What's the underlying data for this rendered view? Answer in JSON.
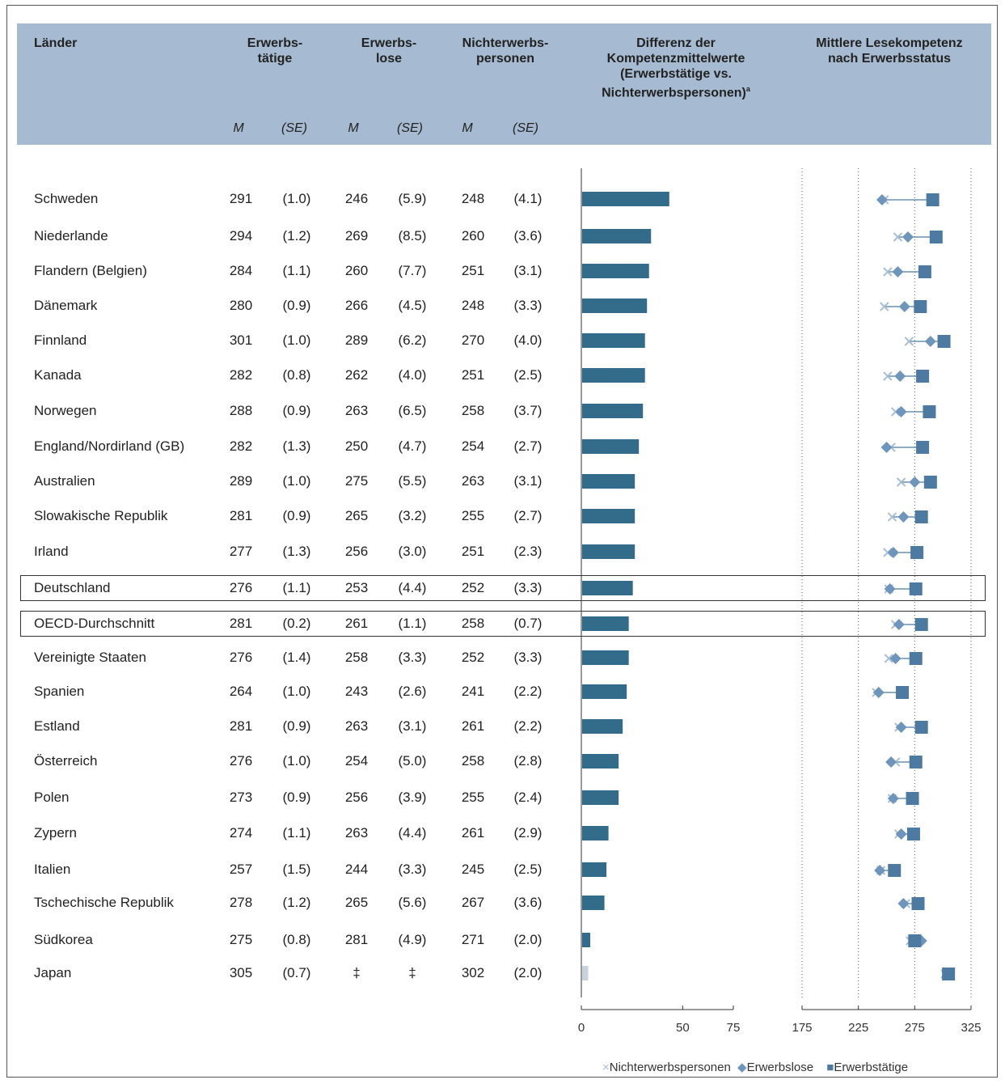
{
  "header": {
    "laender": "Länder",
    "erwerbstaetige": [
      "Erwerbs-",
      "tätige"
    ],
    "erwerbslose": [
      "Erwerbs-",
      "lose"
    ],
    "nichterwerbspersonen": [
      "Nichterwerbs-",
      "personen"
    ],
    "differenz": [
      "Differenz der",
      "Kompetenzmittelwerte",
      "(Erwerbstätige vs.",
      "Nichterwerbspersonen)"
    ],
    "differenz_sup": "a",
    "mittlere": [
      "Mittlere Lesekompetenz",
      "nach Erwerbsstatus"
    ],
    "m_label": "M",
    "se_label": "(SE)"
  },
  "chart_data": {
    "type": "table",
    "columns": [
      "Länder",
      "Erwerbstätige M",
      "Erwerbstätige SE",
      "Erwerbslose M",
      "Erwerbslose SE",
      "Nichterwerbspersonen M",
      "Nichterwerbspersonen SE"
    ],
    "rows": [
      {
        "country": "Schweden",
        "emp": "291",
        "emp_se": "(1.0)",
        "unemp": "246",
        "unemp_se": "(5.9)",
        "inact": "248",
        "inact_se": "(4.1)",
        "diff": 43,
        "highlight": false
      },
      {
        "country": "Niederlande",
        "emp": "294",
        "emp_se": "(1.2)",
        "unemp": "269",
        "unemp_se": "(8.5)",
        "inact": "260",
        "inact_se": "(3.6)",
        "diff": 34,
        "highlight": false
      },
      {
        "country": "Flandern (Belgien)",
        "emp": "284",
        "emp_se": "(1.1)",
        "unemp": "260",
        "unemp_se": "(7.7)",
        "inact": "251",
        "inact_se": "(3.1)",
        "diff": 33,
        "highlight": false
      },
      {
        "country": "Dänemark",
        "emp": "280",
        "emp_se": "(0.9)",
        "unemp": "266",
        "unemp_se": "(4.5)",
        "inact": "248",
        "inact_se": "(3.3)",
        "diff": 32,
        "highlight": false
      },
      {
        "country": "Finnland",
        "emp": "301",
        "emp_se": "(1.0)",
        "unemp": "289",
        "unemp_se": "(6.2)",
        "inact": "270",
        "inact_se": "(4.0)",
        "diff": 31,
        "highlight": false
      },
      {
        "country": "Kanada",
        "emp": "282",
        "emp_se": "(0.8)",
        "unemp": "262",
        "unemp_se": "(4.0)",
        "inact": "251",
        "inact_se": "(2.5)",
        "diff": 31,
        "highlight": false
      },
      {
        "country": "Norwegen",
        "emp": "288",
        "emp_se": "(0.9)",
        "unemp": "263",
        "unemp_se": "(6.5)",
        "inact": "258",
        "inact_se": "(3.7)",
        "diff": 30,
        "highlight": false
      },
      {
        "country": "England/Nordirland (GB)",
        "emp": "282",
        "emp_se": "(1.3)",
        "unemp": "250",
        "unemp_se": "(4.7)",
        "inact": "254",
        "inact_se": "(2.7)",
        "diff": 28,
        "highlight": false
      },
      {
        "country": "Australien",
        "emp": "289",
        "emp_se": "(1.0)",
        "unemp": "275",
        "unemp_se": "(5.5)",
        "inact": "263",
        "inact_se": "(3.1)",
        "diff": 26,
        "highlight": false
      },
      {
        "country": "Slowakische Republik",
        "emp": "281",
        "emp_se": "(0.9)",
        "unemp": "265",
        "unemp_se": "(3.2)",
        "inact": "255",
        "inact_se": "(2.7)",
        "diff": 26,
        "highlight": false
      },
      {
        "country": "Irland",
        "emp": "277",
        "emp_se": "(1.3)",
        "unemp": "256",
        "unemp_se": "(3.0)",
        "inact": "251",
        "inact_se": "(2.3)",
        "diff": 26,
        "highlight": false
      },
      {
        "country": "Deutschland",
        "emp": "276",
        "emp_se": "(1.1)",
        "unemp": "253",
        "unemp_se": "(4.4)",
        "inact": "252",
        "inact_se": "(3.3)",
        "diff": 25,
        "highlight": true
      },
      {
        "country": "OECD-Durchschnitt",
        "emp": "281",
        "emp_se": "(0.2)",
        "unemp": "261",
        "unemp_se": "(1.1)",
        "inact": "258",
        "inact_se": "(0.7)",
        "diff": 23,
        "highlight": true
      },
      {
        "country": "Vereinigte Staaten",
        "emp": "276",
        "emp_se": "(1.4)",
        "unemp": "258",
        "unemp_se": "(3.3)",
        "inact": "252",
        "inact_se": "(3.3)",
        "diff": 23,
        "highlight": false
      },
      {
        "country": "Spanien",
        "emp": "264",
        "emp_se": "(1.0)",
        "unemp": "243",
        "unemp_se": "(2.6)",
        "inact": "241",
        "inact_se": "(2.2)",
        "diff": 22,
        "highlight": false
      },
      {
        "country": "Estland",
        "emp": "281",
        "emp_se": "(0.9)",
        "unemp": "263",
        "unemp_se": "(3.1)",
        "inact": "261",
        "inact_se": "(2.2)",
        "diff": 20,
        "highlight": false
      },
      {
        "country": "Österreich",
        "emp": "276",
        "emp_se": "(1.0)",
        "unemp": "254",
        "unemp_se": "(5.0)",
        "inact": "258",
        "inact_se": "(2.8)",
        "diff": 18,
        "highlight": false
      },
      {
        "country": "Polen",
        "emp": "273",
        "emp_se": "(0.9)",
        "unemp": "256",
        "unemp_se": "(3.9)",
        "inact": "255",
        "inact_se": "(2.4)",
        "diff": 18,
        "highlight": false
      },
      {
        "country": "Zypern",
        "emp": "274",
        "emp_se": "(1.1)",
        "unemp": "263",
        "unemp_se": "(4.4)",
        "inact": "261",
        "inact_se": "(2.9)",
        "diff": 13,
        "highlight": false
      },
      {
        "country": "Italien",
        "emp": "257",
        "emp_se": "(1.5)",
        "unemp": "244",
        "unemp_se": "(3.3)",
        "inact": "245",
        "inact_se": "(2.5)",
        "diff": 12,
        "highlight": false
      },
      {
        "country": "Tschechische Republik",
        "emp": "278",
        "emp_se": "(1.2)",
        "unemp": "265",
        "unemp_se": "(5.6)",
        "inact": "267",
        "inact_se": "(3.6)",
        "diff": 11,
        "highlight": false
      },
      {
        "country": "Südkorea",
        "emp": "275",
        "emp_se": "(0.8)",
        "unemp": "281",
        "unemp_se": "(4.9)",
        "inact": "271",
        "inact_se": "(2.0)",
        "diff": 4,
        "highlight": false
      },
      {
        "country": "Japan",
        "emp": "305",
        "emp_se": "(0.7)",
        "unemp": "‡",
        "unemp_se": "‡",
        "inact": "302",
        "inact_se": "(2.0)",
        "diff": 3,
        "highlight": false,
        "diff_light": true
      }
    ],
    "diff_axis": {
      "ticks": [
        "0",
        "50",
        "75"
      ],
      "tick_values": [
        0,
        50,
        75
      ],
      "range": [
        0,
        75
      ]
    },
    "score_axis": {
      "ticks": [
        "175",
        "225",
        "275",
        "325"
      ],
      "tick_values": [
        175,
        225,
        275,
        325
      ],
      "range": [
        175,
        325
      ],
      "grid": "dotted"
    },
    "legend": [
      {
        "symbol": "×",
        "label": "Nichterwerbspersonen"
      },
      {
        "symbol": "◆",
        "label": "Erwerbslose"
      },
      {
        "symbol": "■",
        "label": "Erwerbstätige"
      }
    ],
    "colors": {
      "bar": "#336b8b",
      "bar_light": "#c6d2dc",
      "square": "#4d7aa0",
      "diamond": "#6e95bc",
      "cross": "#a9bfd2",
      "header": "#a6bbd1"
    }
  }
}
